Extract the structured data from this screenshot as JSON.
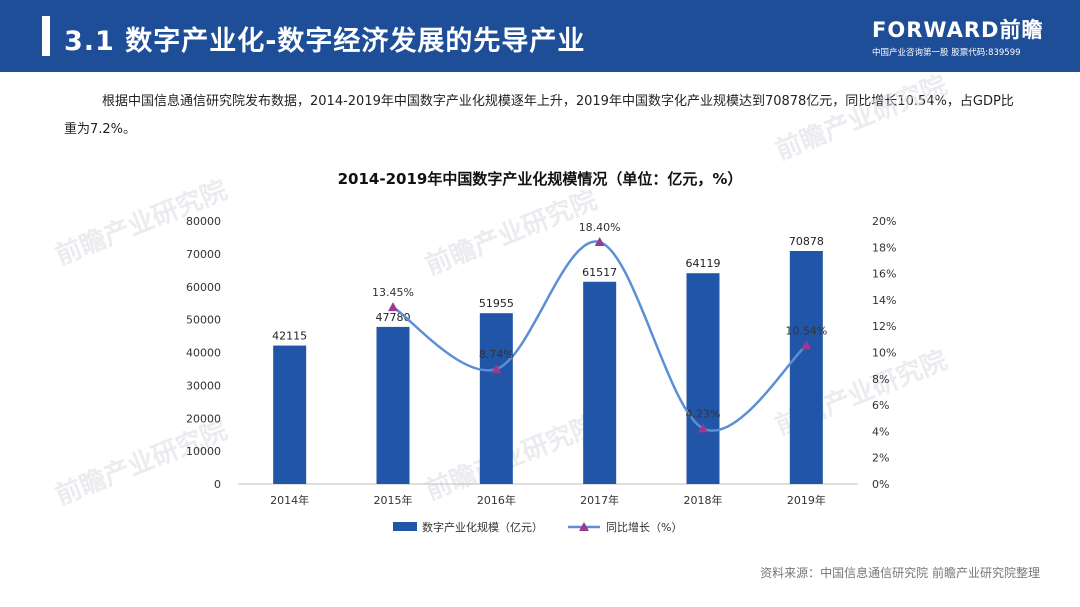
{
  "header": {
    "title": "3.1 数字产业化-数字经济发展的先导产业",
    "brand_name": "FORWARD前瞻",
    "brand_sub": "中国产业咨询第一股 股票代码:839599"
  },
  "intro": "根据中国信息通信研究院发布数据，2014-2019年中国数字产业化规模逐年上升，2019年中国数字化产业规模达到70878亿元，同比增长10.54%，占GDP比重为7.2%。",
  "source": "资料来源：中国信息通信研究院 前瞻产业研究院整理",
  "watermark": "前瞻产业研究院",
  "colors": {
    "header": "#1f4e99",
    "bar": "#2155a8",
    "line": "#5b8fd6",
    "marker": "#9b3a8f"
  },
  "chart_data": {
    "type": "bar",
    "title": "2014-2019年中国数字产业化规模情况（单位：亿元，%）",
    "categories": [
      "2014年",
      "2015年",
      "2016年",
      "2017年",
      "2018年",
      "2019年"
    ],
    "series": [
      {
        "name": "数字产业化规模（亿元）",
        "type": "bar",
        "axis": "left",
        "values": [
          42115,
          47780,
          51955,
          61517,
          64119,
          70878
        ],
        "labels": [
          "42115",
          "47780",
          "51955",
          "61517",
          "64119",
          "70878"
        ]
      },
      {
        "name": "同比增长（%）",
        "type": "line",
        "axis": "right",
        "values": [
          null,
          13.45,
          8.74,
          18.4,
          4.23,
          10.54
        ],
        "labels": [
          "",
          "13.45%",
          "8.74%",
          "18.40%",
          "4.23%",
          "10.54%"
        ]
      }
    ],
    "y_left": {
      "ylim": [
        0,
        80000
      ],
      "ticks": [
        "0",
        "10000",
        "20000",
        "30000",
        "40000",
        "50000",
        "60000",
        "70000",
        "80000"
      ]
    },
    "y_right": {
      "ylim": [
        0,
        20
      ],
      "ticks": [
        "0%",
        "2%",
        "4%",
        "6%",
        "8%",
        "10%",
        "12%",
        "14%",
        "16%",
        "18%",
        "20%"
      ]
    },
    "grid": false,
    "legend": "bottom"
  }
}
